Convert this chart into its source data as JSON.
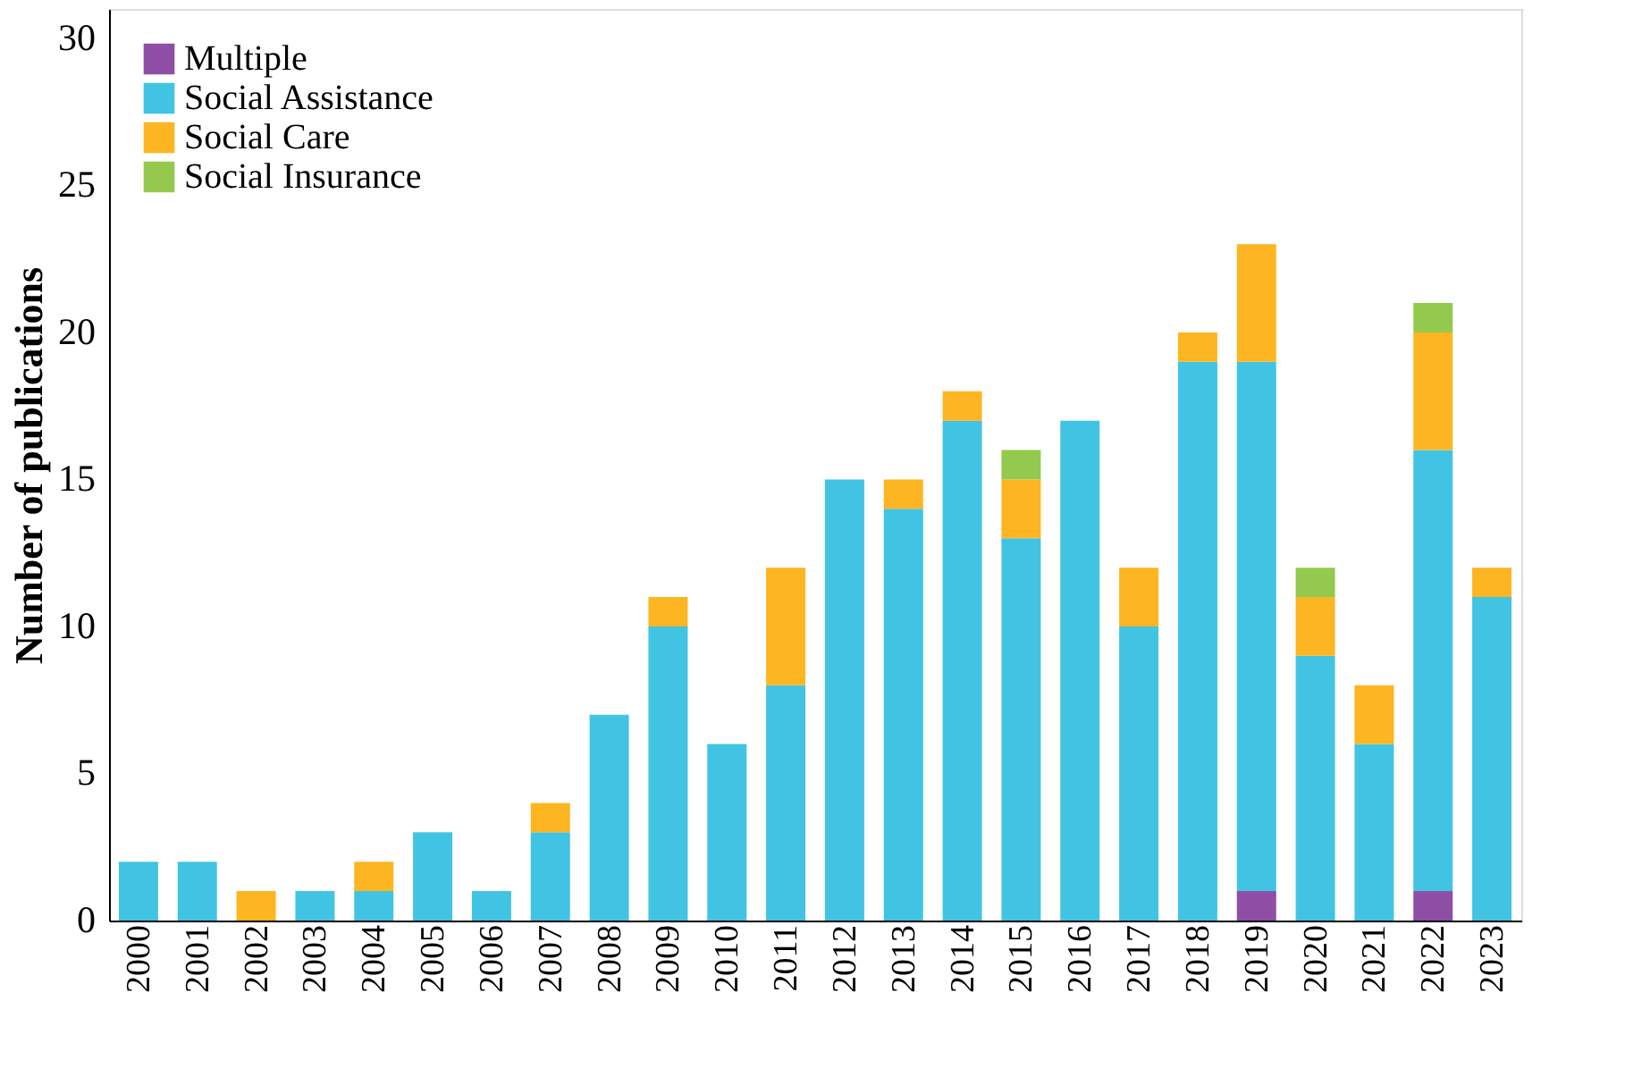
{
  "chart_data": {
    "type": "bar",
    "stacked": true,
    "ylabel": "Number of publications",
    "categories": [
      "2000",
      "2001",
      "2002",
      "2003",
      "2004",
      "2005",
      "2006",
      "2007",
      "2008",
      "2009",
      "2010",
      "2011",
      "2012",
      "2013",
      "2014",
      "2015",
      "2016",
      "2017",
      "2018",
      "2019",
      "2020",
      "2021",
      "2022",
      "2023"
    ],
    "series": [
      {
        "name": "Multiple",
        "color": "#8e4ea6",
        "values": [
          0,
          0,
          0,
          0,
          0,
          0,
          0,
          0,
          0,
          0,
          0,
          0,
          0,
          0,
          0,
          0,
          0,
          0,
          0,
          1,
          0,
          0,
          1,
          0
        ]
      },
      {
        "name": "Social Assistance",
        "color": "#41c4e3",
        "values": [
          2,
          2,
          0,
          1,
          1,
          3,
          1,
          3,
          7,
          10,
          6,
          8,
          15,
          14,
          17,
          13,
          17,
          10,
          19,
          18,
          9,
          6,
          15,
          11
        ]
      },
      {
        "name": "Social Care",
        "color": "#fdb521",
        "values": [
          0,
          0,
          1,
          0,
          1,
          0,
          0,
          1,
          0,
          1,
          0,
          4,
          0,
          1,
          1,
          2,
          0,
          2,
          1,
          4,
          2,
          2,
          4,
          1
        ]
      },
      {
        "name": "Social Insurance",
        "color": "#93c94d",
        "values": [
          0,
          0,
          0,
          0,
          0,
          0,
          0,
          0,
          0,
          0,
          0,
          0,
          0,
          0,
          0,
          1,
          0,
          0,
          0,
          0,
          1,
          0,
          1,
          0
        ]
      }
    ],
    "ylim": [
      0,
      31
    ],
    "yticks": [
      0,
      5,
      10,
      15,
      20,
      25,
      30
    ],
    "grid": false,
    "legend": "top left"
  }
}
